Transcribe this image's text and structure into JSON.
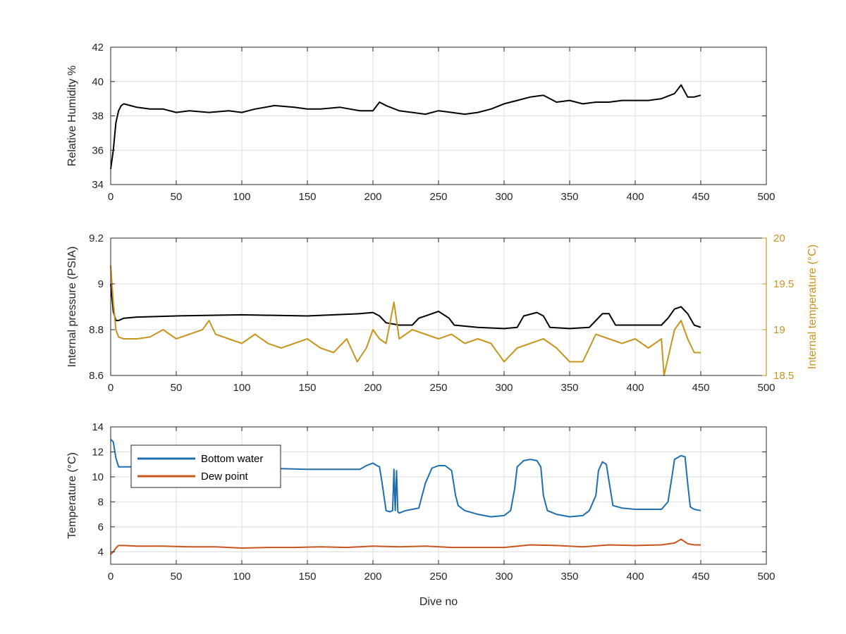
{
  "colors": {
    "humidity": "#000000",
    "pressure": "#000000",
    "internal_temp": "#C8961E",
    "bottom_water": "#1F6FAE",
    "dew_point": "#C8541E",
    "grid": "#dcdcdc",
    "axes": "#262626"
  },
  "chart_data": [
    {
      "type": "line",
      "xlabel": "",
      "ylabel": "Relative Humidity %",
      "xlim": [
        0,
        500
      ],
      "ylim": [
        34,
        42
      ],
      "xticks": [
        0,
        50,
        100,
        150,
        200,
        250,
        300,
        350,
        400,
        450,
        500
      ],
      "yticks": [
        34,
        36,
        38,
        40,
        42
      ],
      "grid": true,
      "series": [
        {
          "x": [
            0,
            2,
            4,
            6,
            8,
            10,
            15,
            20,
            30,
            40,
            50,
            60,
            75,
            90,
            100,
            110,
            125,
            140,
            150,
            160,
            175,
            190,
            200,
            205,
            210,
            220,
            230,
            240,
            250,
            260,
            270,
            280,
            290,
            300,
            310,
            320,
            330,
            340,
            350,
            360,
            370,
            380,
            390,
            400,
            410,
            420,
            430,
            435,
            440,
            445,
            450
          ],
          "y": [
            34.9,
            36.0,
            37.6,
            38.3,
            38.6,
            38.7,
            38.6,
            38.5,
            38.4,
            38.4,
            38.2,
            38.3,
            38.2,
            38.3,
            38.2,
            38.4,
            38.6,
            38.5,
            38.4,
            38.4,
            38.5,
            38.3,
            38.3,
            38.8,
            38.6,
            38.3,
            38.2,
            38.1,
            38.3,
            38.2,
            38.1,
            38.2,
            38.4,
            38.7,
            38.9,
            39.1,
            39.2,
            38.8,
            38.9,
            38.7,
            38.8,
            38.8,
            38.9,
            38.9,
            38.9,
            39.0,
            39.3,
            39.8,
            39.1,
            39.1,
            39.2
          ]
        }
      ]
    },
    {
      "type": "line",
      "xlabel": "",
      "ylabel": "Internal pressure (PSIA)",
      "y2label": "Internal temperature (°C)",
      "xlim": [
        0,
        500
      ],
      "ylim": [
        8.6,
        9.2
      ],
      "y2lim": [
        18.5,
        20
      ],
      "xticks": [
        0,
        50,
        100,
        150,
        200,
        250,
        300,
        350,
        400,
        450,
        500
      ],
      "yticks": [
        8.6,
        8.8,
        9.0,
        9.2
      ],
      "yticklabels": [
        "8.6",
        "8.8",
        "9",
        "9.2"
      ],
      "y2ticks": [
        18.5,
        19,
        19.5,
        20
      ],
      "y2ticklabels": [
        "18.5",
        "19",
        "19.5",
        "20"
      ],
      "grid": true,
      "series": [
        {
          "axis": "left",
          "x": [
            0,
            2,
            4,
            6,
            10,
            20,
            50,
            100,
            150,
            190,
            200,
            205,
            210,
            220,
            230,
            235,
            245,
            250,
            258,
            262,
            280,
            300,
            310,
            315,
            325,
            330,
            335,
            350,
            365,
            370,
            375,
            380,
            385,
            400,
            420,
            425,
            430,
            435,
            440,
            445,
            450
          ],
          "y": [
            9.0,
            8.88,
            8.84,
            8.84,
            8.85,
            8.855,
            8.86,
            8.865,
            8.86,
            8.87,
            8.875,
            8.86,
            8.83,
            8.82,
            8.82,
            8.85,
            8.87,
            8.88,
            8.85,
            8.82,
            8.81,
            8.805,
            8.81,
            8.86,
            8.875,
            8.86,
            8.81,
            8.805,
            8.81,
            8.84,
            8.87,
            8.87,
            8.82,
            8.82,
            8.82,
            8.85,
            8.89,
            8.9,
            8.87,
            8.82,
            8.81
          ]
        },
        {
          "axis": "right",
          "x": [
            0,
            2,
            4,
            6,
            10,
            20,
            30,
            40,
            50,
            60,
            70,
            75,
            80,
            90,
            100,
            110,
            120,
            130,
            140,
            150,
            160,
            170,
            180,
            188,
            195,
            200,
            205,
            210,
            216,
            220,
            230,
            240,
            250,
            260,
            270,
            280,
            290,
            300,
            310,
            320,
            330,
            340,
            350,
            360,
            370,
            380,
            390,
            400,
            410,
            420,
            422,
            430,
            435,
            440,
            445,
            450
          ],
          "y": [
            19.7,
            19.3,
            19.0,
            18.92,
            18.9,
            18.9,
            18.92,
            19.0,
            18.9,
            18.95,
            19.0,
            19.1,
            18.95,
            18.9,
            18.85,
            18.95,
            18.85,
            18.8,
            18.85,
            18.9,
            18.8,
            18.75,
            18.9,
            18.65,
            18.8,
            19.0,
            18.9,
            18.85,
            19.3,
            18.9,
            19.0,
            18.95,
            18.9,
            18.95,
            18.85,
            18.9,
            18.85,
            18.65,
            18.8,
            18.85,
            18.9,
            18.8,
            18.65,
            18.65,
            18.95,
            18.9,
            18.85,
            18.9,
            18.8,
            18.9,
            18.5,
            19.0,
            19.1,
            18.9,
            18.75,
            18.75
          ]
        }
      ]
    },
    {
      "type": "line",
      "xlabel": "Dive no",
      "ylabel": "Temperature (°C)",
      "xlim": [
        0,
        500
      ],
      "ylim": [
        3,
        14
      ],
      "xticks": [
        0,
        50,
        100,
        150,
        200,
        250,
        300,
        350,
        400,
        450,
        500
      ],
      "yticks": [
        4,
        6,
        8,
        10,
        12,
        14
      ],
      "grid": true,
      "legend": "top-left",
      "series": [
        {
          "name": "Bottom water",
          "x": [
            0,
            2,
            4,
            6,
            10,
            20,
            50,
            100,
            150,
            190,
            195,
            200,
            203,
            205,
            207,
            210,
            213,
            215,
            216,
            217,
            218,
            219,
            220,
            225,
            230,
            235,
            240,
            245,
            250,
            255,
            260,
            263,
            265,
            270,
            280,
            290,
            300,
            305,
            308,
            310,
            315,
            320,
            325,
            328,
            330,
            333,
            340,
            350,
            360,
            365,
            370,
            372,
            375,
            378,
            381,
            383,
            390,
            400,
            410,
            420,
            425,
            428,
            430,
            435,
            438,
            440,
            442,
            445,
            450
          ],
          "y": [
            13.0,
            12.8,
            11.5,
            10.8,
            10.8,
            10.8,
            10.7,
            10.75,
            10.6,
            10.6,
            10.9,
            11.1,
            10.9,
            10.8,
            9.5,
            7.3,
            7.2,
            7.3,
            10.6,
            7.3,
            10.5,
            7.2,
            7.1,
            7.3,
            7.4,
            7.5,
            9.5,
            10.7,
            10.9,
            10.9,
            10.5,
            8.5,
            7.7,
            7.3,
            7.0,
            6.8,
            6.9,
            7.3,
            9.0,
            10.8,
            11.3,
            11.4,
            11.3,
            10.8,
            8.5,
            7.3,
            7.0,
            6.8,
            6.9,
            7.3,
            8.5,
            10.5,
            11.2,
            11.0,
            9.0,
            7.7,
            7.5,
            7.4,
            7.4,
            7.4,
            8.0,
            10.0,
            11.4,
            11.7,
            11.6,
            9.5,
            7.6,
            7.4,
            7.3
          ]
        },
        {
          "name": "Dew point",
          "x": [
            0,
            2,
            4,
            6,
            10,
            20,
            40,
            60,
            80,
            100,
            120,
            140,
            160,
            180,
            200,
            220,
            240,
            260,
            280,
            300,
            320,
            340,
            360,
            380,
            400,
            420,
            430,
            435,
            440,
            445,
            450
          ],
          "y": [
            3.8,
            4.0,
            4.3,
            4.5,
            4.5,
            4.45,
            4.45,
            4.4,
            4.4,
            4.3,
            4.35,
            4.35,
            4.4,
            4.35,
            4.45,
            4.4,
            4.45,
            4.35,
            4.35,
            4.35,
            4.55,
            4.5,
            4.4,
            4.55,
            4.5,
            4.55,
            4.7,
            5.0,
            4.65,
            4.55,
            4.55
          ]
        }
      ]
    }
  ]
}
